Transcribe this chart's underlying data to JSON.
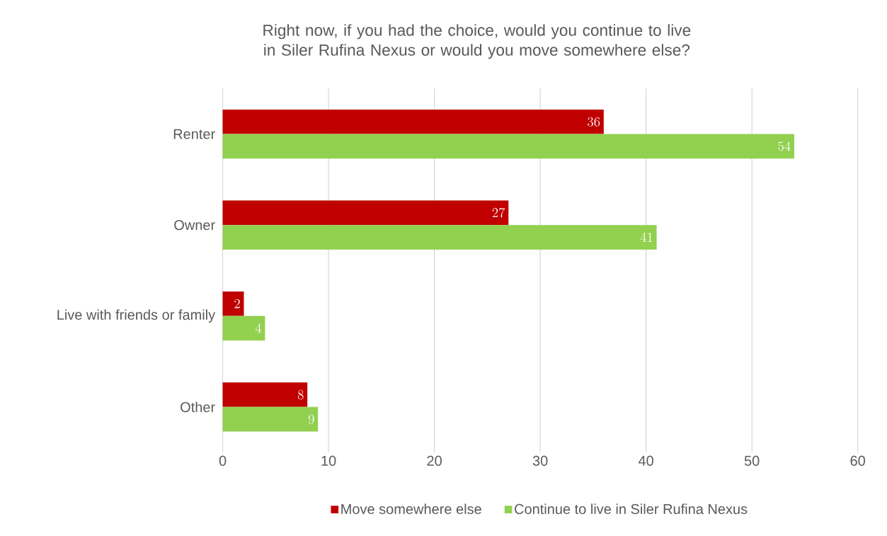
{
  "chart_data": {
    "type": "bar",
    "orientation": "horizontal",
    "title": "Right now, if you had the choice, would you continue to live in Siler Rufina Nexus or would you move somewhere else?",
    "categories": [
      "Renter",
      "Owner",
      "Live with friends or family",
      "Other"
    ],
    "series": [
      {
        "name": "Move somewhere else",
        "color": "#c00000",
        "values": [
          36,
          27,
          2,
          8
        ]
      },
      {
        "name": "Continue to live in Siler Rufina Nexus",
        "color": "#92d050",
        "values": [
          54,
          41,
          4,
          9
        ]
      }
    ],
    "xlim": [
      0,
      60
    ],
    "xticks": [
      0,
      10,
      20,
      30,
      40,
      50,
      60
    ],
    "grid": "x",
    "legend": "bottom",
    "data_labels": true
  }
}
